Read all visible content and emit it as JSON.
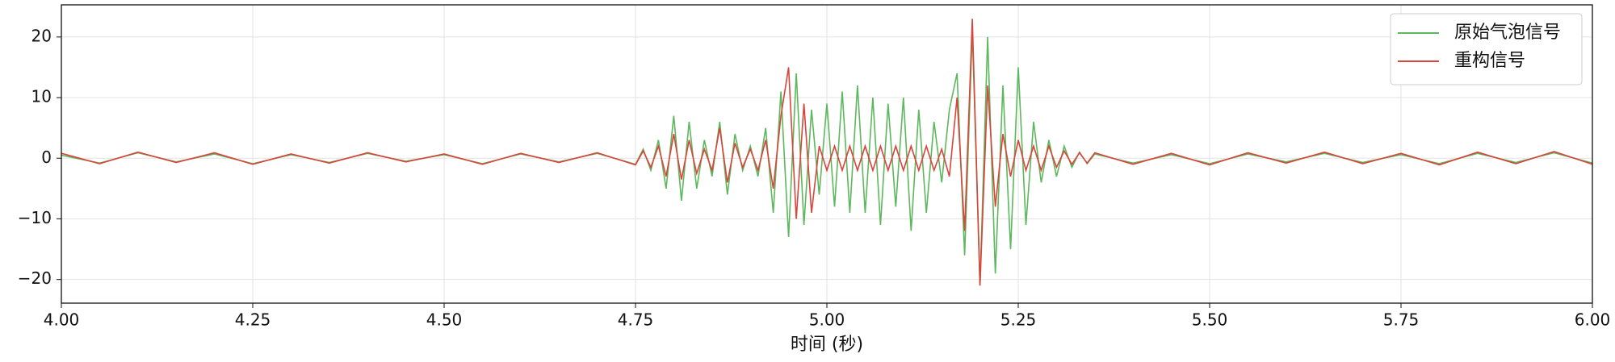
{
  "chart_data": {
    "type": "line",
    "x_label": "时间 (秒)",
    "x": [
      4.0,
      4.05,
      4.1,
      4.15,
      4.2,
      4.25,
      4.3,
      4.35,
      4.4,
      4.45,
      4.5,
      4.55,
      4.6,
      4.65,
      4.7,
      4.75,
      4.76,
      4.77,
      4.78,
      4.79,
      4.8,
      4.81,
      4.82,
      4.83,
      4.84,
      4.85,
      4.86,
      4.87,
      4.88,
      4.89,
      4.9,
      4.91,
      4.92,
      4.93,
      4.94,
      4.95,
      4.96,
      4.97,
      4.98,
      4.99,
      5.0,
      5.01,
      5.02,
      5.03,
      5.04,
      5.05,
      5.06,
      5.07,
      5.08,
      5.09,
      5.1,
      5.11,
      5.12,
      5.13,
      5.14,
      5.15,
      5.16,
      5.17,
      5.18,
      5.19,
      5.2,
      5.21,
      5.22,
      5.23,
      5.24,
      5.25,
      5.26,
      5.27,
      5.28,
      5.29,
      5.3,
      5.31,
      5.32,
      5.33,
      5.34,
      5.35,
      5.4,
      5.45,
      5.5,
      5.55,
      5.6,
      5.65,
      5.7,
      5.75,
      5.8,
      5.85,
      5.9,
      5.95,
      6.0
    ],
    "series": [
      {
        "name": "原始气泡信号",
        "color": "#5cb85c",
        "values": [
          0.5,
          -0.8,
          0.9,
          -0.6,
          0.7,
          -0.9,
          0.6,
          -0.7,
          0.8,
          -0.5,
          0.6,
          -0.9,
          0.7,
          -0.6,
          0.8,
          -1.0,
          1.5,
          -2,
          3,
          -5,
          7,
          -7,
          6,
          -5,
          3,
          -3,
          6,
          -6,
          4,
          -2,
          2,
          -3,
          5,
          -9,
          11,
          -13,
          14,
          -11,
          8,
          -6,
          9,
          -8,
          11,
          -9,
          12,
          -9,
          10,
          -11,
          9,
          -8,
          10,
          -12,
          8,
          -9,
          6,
          -4,
          8,
          14,
          -16,
          21,
          -21,
          20,
          -19,
          12,
          -15,
          15,
          -11,
          6,
          -4,
          3,
          -3,
          2,
          -1.5,
          1,
          -0.9,
          0.7,
          -0.8,
          0.6,
          -0.9,
          0.7,
          -0.6,
          0.8,
          -0.7,
          0.6,
          -0.9,
          0.8,
          -0.7,
          0.9,
          -0.8
        ]
      },
      {
        "name": "重构信号",
        "color": "#d9443b",
        "values": [
          0.8,
          -0.9,
          1.0,
          -0.7,
          0.9,
          -1.0,
          0.7,
          -0.8,
          0.9,
          -0.6,
          0.7,
          -1.0,
          0.8,
          -0.7,
          0.9,
          -1.1,
          1.2,
          -1.5,
          2,
          -3,
          4,
          -3.5,
          3,
          -2.5,
          1.5,
          -2,
          5,
          -4,
          2.5,
          -1.5,
          1.5,
          -2,
          3,
          -5,
          7,
          15,
          -10,
          9,
          -9,
          2,
          -2,
          2,
          -2,
          2,
          -2,
          2,
          -2,
          2,
          -2,
          2,
          -2,
          2,
          -2,
          2,
          -2,
          1.5,
          -3,
          10,
          -12,
          23,
          -21,
          12,
          -8,
          4,
          -3,
          3,
          -2,
          2,
          -2,
          2,
          -1.5,
          1.2,
          -1,
          0.9,
          -0.8,
          0.9,
          -1.0,
          0.8,
          -1.1,
          0.9,
          -0.8,
          1.0,
          -0.9,
          0.8,
          -1.1,
          1.0,
          -0.9,
          1.1,
          -1.0
        ]
      }
    ],
    "xlim": [
      4.0,
      6.0
    ],
    "xticks": [
      {
        "value": 4.0,
        "label": "4.00"
      },
      4.25,
      {
        "value": 4.5,
        "label": "4.50"
      },
      4.75,
      {
        "value": 5.0,
        "label": "5.00"
      },
      5.25,
      {
        "value": 5.5,
        "label": "5.50"
      },
      5.75,
      {
        "value": 6.0,
        "label": "6.00"
      }
    ],
    "ylim": [
      -23.9,
      25.3
    ],
    "yticks": [
      {
        "value": -20,
        "label": "−20"
      },
      {
        "value": -10,
        "label": "−10"
      },
      0,
      10,
      20
    ],
    "grid": true,
    "legend": "upper right"
  }
}
